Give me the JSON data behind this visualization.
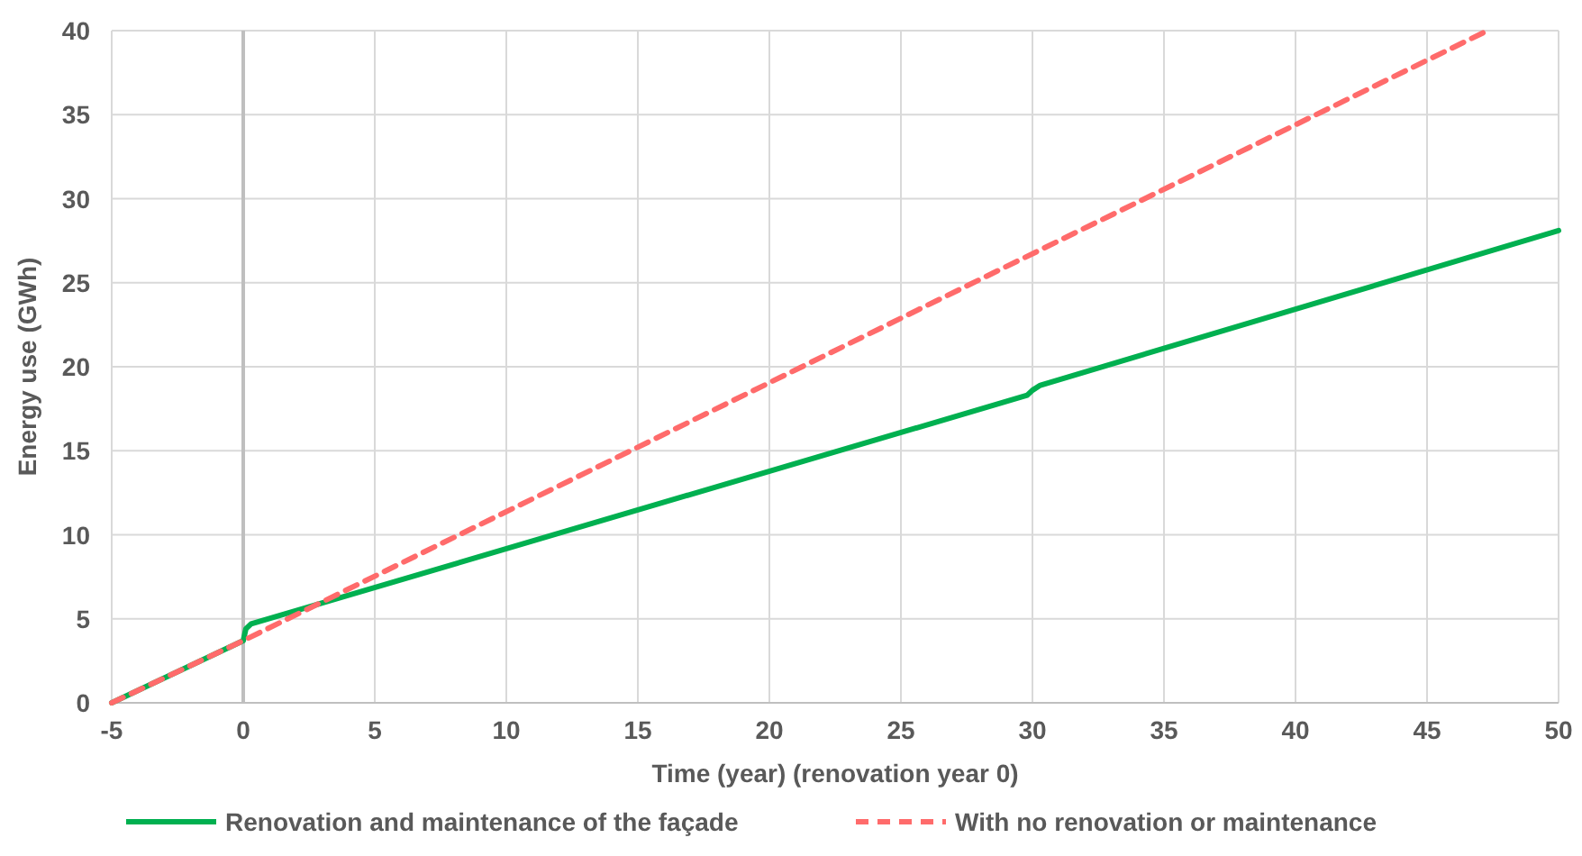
{
  "chart_data": {
    "type": "line",
    "xlabel": "Time (year) (renovation year 0)",
    "ylabel": "Energy use (GWh)",
    "xlim": [
      -5,
      50
    ],
    "xticks": [
      -5,
      0,
      5,
      10,
      15,
      20,
      25,
      30,
      35,
      40,
      45,
      50
    ],
    "ylim": [
      0,
      40
    ],
    "yticks": [
      0,
      5,
      10,
      15,
      20,
      25,
      30,
      35,
      40
    ],
    "grid": true,
    "legend": "bottom",
    "ref_lines": [
      {
        "axis": "x",
        "value": 0,
        "color": "#bfbfbf"
      }
    ],
    "series": [
      {
        "name": "Renovation and maintenance of the façade",
        "color": "#00b050",
        "line_style": "solid",
        "x": [
          -5,
          0,
          0.1,
          0.3,
          29.8,
          30,
          30.3,
          50
        ],
        "values": [
          0,
          3.7,
          4.4,
          4.7,
          18.3,
          18.6,
          18.9,
          28.1
        ]
      },
      {
        "name": "With no renovation or maintenance",
        "color": "#ff6b6b",
        "line_style": "dashed",
        "x": [
          -5,
          0,
          47.3
        ],
        "values": [
          0,
          3.7,
          40
        ]
      }
    ]
  }
}
